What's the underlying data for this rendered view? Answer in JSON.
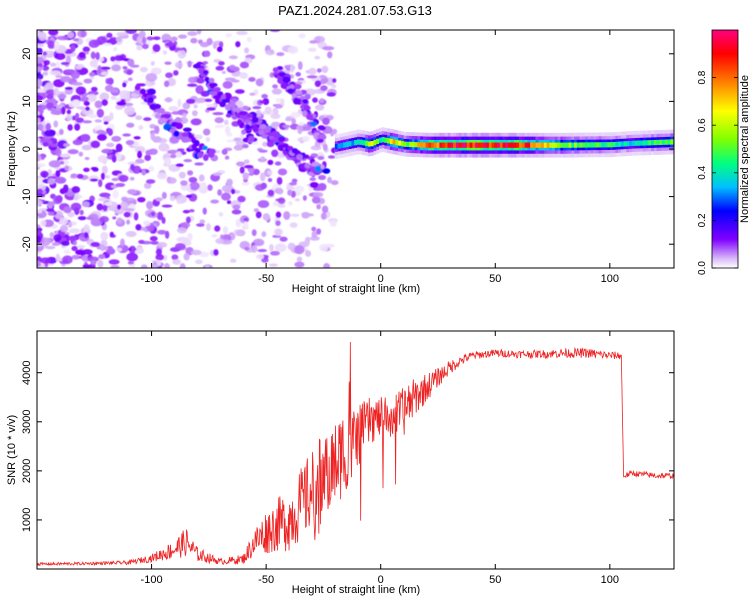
{
  "figure": {
    "title": "PAZ1.2024.281.07.53.G13"
  },
  "chart_data": [
    {
      "type": "heatmap",
      "title": "PAZ1.2024.281.07.53.G13",
      "xlabel": "Height of straight line (km)",
      "ylabel": "Frequency (Hz)",
      "xlim": [
        -150,
        128
      ],
      "ylim": [
        -25,
        25
      ],
      "xticks": [
        -100,
        -50,
        0,
        50,
        100
      ],
      "yticks": [
        -20,
        -10,
        0,
        10,
        20
      ],
      "grid": false,
      "colorbar": {
        "label": "Normalized spectral amplitude",
        "range": [
          0,
          1
        ],
        "ticks": [
          "0.0",
          "0.2",
          "0.4",
          "0.6",
          "0.8"
        ],
        "colormap": [
          "#ffffff",
          "#d8b8f8",
          "#8000ff",
          "#0000ff",
          "#00c0ff",
          "#00ff80",
          "#80ff00",
          "#ffff00",
          "#ff8000",
          "#ff0000",
          "#ff0080"
        ]
      },
      "main_band": [
        {
          "x": -20,
          "f": 0.5,
          "amp": 0.35
        },
        {
          "x": -10,
          "f": 1.5,
          "amp": 0.45
        },
        {
          "x": -5,
          "f": 1.0,
          "amp": 0.7
        },
        {
          "x": 0,
          "f": 2.0,
          "amp": 0.45
        },
        {
          "x": 5,
          "f": 1.5,
          "amp": 0.75
        },
        {
          "x": 10,
          "f": 1.0,
          "amp": 0.55
        },
        {
          "x": 20,
          "f": 0.8,
          "amp": 0.85
        },
        {
          "x": 40,
          "f": 0.8,
          "amp": 0.95
        },
        {
          "x": 60,
          "f": 0.8,
          "amp": 0.9
        },
        {
          "x": 80,
          "f": 0.8,
          "amp": 0.6
        },
        {
          "x": 100,
          "f": 0.9,
          "amp": 0.5
        },
        {
          "x": 110,
          "f": 1.2,
          "amp": 0.45
        },
        {
          "x": 128,
          "f": 1.5,
          "amp": 0.6
        }
      ]
    },
    {
      "type": "line",
      "xlabel": "Height of straight line (km)",
      "ylabel": "SNR (10 * v/v)",
      "xlim": [
        -150,
        128
      ],
      "ylim": [
        0,
        4850
      ],
      "xticks": [
        -100,
        -50,
        0,
        50,
        100
      ],
      "yticks": [
        1000,
        2000,
        3000,
        4000
      ],
      "grid": false,
      "series": [
        {
          "color": "#ee2222",
          "x": [
            -150,
            -130,
            -110,
            -100,
            -90,
            -85,
            -80,
            -70,
            -60,
            -55,
            -50,
            -45,
            -40,
            -35,
            -30,
            -25,
            -20,
            -15,
            -10,
            -5,
            0,
            5,
            10,
            15,
            20,
            25,
            30,
            35,
            40,
            50,
            60,
            70,
            80,
            90,
            100,
            105,
            106,
            110,
            120,
            128
          ],
          "y": [
            100,
            110,
            130,
            220,
            400,
            550,
            300,
            150,
            200,
            550,
            750,
            900,
            1000,
            1300,
            1600,
            1900,
            2100,
            2500,
            2700,
            3000,
            3100,
            3100,
            3200,
            3500,
            3700,
            3900,
            4100,
            4250,
            4350,
            4400,
            4380,
            4380,
            4400,
            4400,
            4350,
            4350,
            1900,
            1950,
            1900,
            1900
          ],
          "noise": [
            30,
            30,
            40,
            80,
            200,
            300,
            150,
            60,
            100,
            300,
            450,
            550,
            650,
            750,
            850,
            900,
            900,
            900,
            650,
            500,
            400,
            450,
            500,
            400,
            300,
            200,
            150,
            100,
            80,
            80,
            80,
            80,
            100,
            100,
            80,
            80,
            60,
            60,
            60,
            60
          ]
        }
      ]
    }
  ]
}
